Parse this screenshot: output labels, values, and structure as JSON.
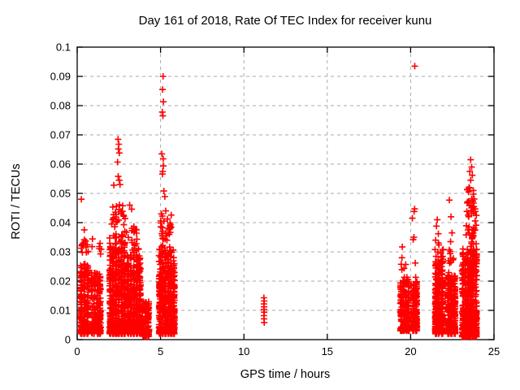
{
  "chart": {
    "title": "Day 161 of 2018, Rate Of TEC Index for receiver kunu",
    "xlabel": "GPS time / hours",
    "ylabel": "ROTI / TECUs",
    "colors": {
      "marker": "#ff0000",
      "frame": "#000000",
      "grid": "#aaaaaa",
      "background": "#ffffff",
      "text": "#000000"
    },
    "marker": {
      "shape": "plus",
      "size": 8,
      "stroke_width": 1.6
    }
  },
  "chart_data": {
    "type": "scatter",
    "title": "Day 161 of 2018, Rate Of TEC Index for receiver kunu",
    "xlabel": "GPS time / hours",
    "ylabel": "ROTI / TECUs",
    "xlim": [
      0,
      25
    ],
    "ylim": [
      0,
      0.1
    ],
    "xticks": [
      0,
      5,
      10,
      15,
      20,
      25
    ],
    "xtick_labels": [
      "0",
      "5",
      "10",
      "15",
      "20",
      "25"
    ],
    "ytick_values": [
      0,
      0.01,
      0.02,
      0.03,
      0.04,
      0.05,
      0.06,
      0.07,
      0.08,
      0.09,
      0.1
    ],
    "ytick_labels": [
      "0",
      "0.01",
      "0.02",
      "0.03",
      "0.04",
      "0.05",
      "0.06",
      "0.07",
      "0.08",
      "0.09",
      "0.1"
    ],
    "grid": true,
    "legend": null,
    "series_name": "ROTI",
    "dense_clusters": [
      {
        "x": [
          0.15,
          0.72
        ],
        "y": [
          0.002,
          0.026
        ],
        "n": 240,
        "p": 1.7
      },
      {
        "x": [
          0.8,
          1.45
        ],
        "y": [
          0.002,
          0.023
        ],
        "n": 210,
        "p": 1.7
      },
      {
        "x": [
          1.9,
          2.92
        ],
        "y": [
          0.002,
          0.033
        ],
        "n": 520,
        "p": 1.8
      },
      {
        "x": [
          2.95,
          3.85
        ],
        "y": [
          0.002,
          0.029
        ],
        "n": 440,
        "p": 1.8
      },
      {
        "x": [
          3.87,
          4.35
        ],
        "y": [
          0.001,
          0.013
        ],
        "n": 130,
        "p": 1.5
      },
      {
        "x": [
          4.87,
          5.88
        ],
        "y": [
          0.002,
          0.031
        ],
        "n": 560,
        "p": 1.8
      },
      {
        "x": [
          19.35,
          19.95
        ],
        "y": [
          0.003,
          0.021
        ],
        "n": 190,
        "p": 1.6
      },
      {
        "x": [
          20.08,
          20.42
        ],
        "y": [
          0.003,
          0.02
        ],
        "n": 150,
        "p": 1.6
      },
      {
        "x": [
          21.42,
          21.98
        ],
        "y": [
          0.002,
          0.027
        ],
        "n": 360,
        "p": 1.8
      },
      {
        "x": [
          22.18,
          22.72
        ],
        "y": [
          0.002,
          0.022
        ],
        "n": 300,
        "p": 1.8
      },
      {
        "x": [
          23.05,
          24.0
        ],
        "y": [
          0.001,
          0.031
        ],
        "n": 620,
        "p": 1.8
      }
    ],
    "sparse_bands": [
      {
        "x": [
          0.2,
          0.95
        ],
        "y": [
          0.028,
          0.039
        ],
        "n": 14
      },
      {
        "x": [
          1.3,
          1.45
        ],
        "y": [
          0.027,
          0.033
        ],
        "n": 4
      },
      {
        "x": [
          1.95,
          2.9
        ],
        "y": [
          0.033,
          0.047
        ],
        "n": 38
      },
      {
        "x": [
          2.95,
          3.75
        ],
        "y": [
          0.029,
          0.04
        ],
        "n": 20
      },
      {
        "x": [
          4.95,
          5.65
        ],
        "y": [
          0.031,
          0.043
        ],
        "n": 32
      },
      {
        "x": [
          19.4,
          19.9
        ],
        "y": [
          0.021,
          0.026
        ],
        "n": 6
      },
      {
        "x": [
          21.45,
          21.95
        ],
        "y": [
          0.027,
          0.034
        ],
        "n": 12
      },
      {
        "x": [
          22.25,
          22.65
        ],
        "y": [
          0.022,
          0.031
        ],
        "n": 10
      },
      {
        "x": [
          23.3,
          23.95
        ],
        "y": [
          0.031,
          0.043
        ],
        "n": 26
      },
      {
        "x": [
          23.35,
          23.9
        ],
        "y": [
          0.043,
          0.052
        ],
        "n": 24
      }
    ],
    "outlier_points": [
      [
        0.25,
        0.048
      ],
      [
        1.37,
        0.0329
      ],
      [
        2.45,
        0.0685
      ],
      [
        2.5,
        0.0668
      ],
      [
        2.47,
        0.0652
      ],
      [
        2.53,
        0.0638
      ],
      [
        2.42,
        0.0607
      ],
      [
        2.46,
        0.0558
      ],
      [
        2.52,
        0.0545
      ],
      [
        2.57,
        0.053
      ],
      [
        2.2,
        0.0528
      ],
      [
        3.15,
        0.046
      ],
      [
        3.27,
        0.0446
      ],
      [
        3.4,
        0.0387
      ],
      [
        3.56,
        0.0375
      ],
      [
        5.15,
        0.09
      ],
      [
        5.12,
        0.0855
      ],
      [
        5.17,
        0.0813
      ],
      [
        5.1,
        0.0778
      ],
      [
        5.14,
        0.0765
      ],
      [
        5.08,
        0.0635
      ],
      [
        5.16,
        0.0618
      ],
      [
        5.17,
        0.0594
      ],
      [
        5.13,
        0.0575
      ],
      [
        5.11,
        0.0566
      ],
      [
        5.2,
        0.0508
      ],
      [
        5.26,
        0.0489
      ],
      [
        5.31,
        0.044
      ],
      [
        11.2,
        0.0143
      ],
      [
        11.22,
        0.0132
      ],
      [
        11.2,
        0.0122
      ],
      [
        11.21,
        0.0112
      ],
      [
        11.2,
        0.0103
      ],
      [
        11.22,
        0.0094
      ],
      [
        11.2,
        0.0082
      ],
      [
        11.21,
        0.0071
      ],
      [
        11.22,
        0.0058
      ],
      [
        19.5,
        0.0317
      ],
      [
        19.48,
        0.028
      ],
      [
        20.25,
        0.0935
      ],
      [
        20.24,
        0.0447
      ],
      [
        20.21,
        0.0438
      ],
      [
        20.1,
        0.0415
      ],
      [
        20.2,
        0.035
      ],
      [
        20.15,
        0.0342
      ],
      [
        20.28,
        0.0262
      ],
      [
        20.3,
        0.0213
      ],
      [
        21.6,
        0.041
      ],
      [
        21.55,
        0.0388
      ],
      [
        21.66,
        0.0362
      ],
      [
        21.5,
        0.034
      ],
      [
        22.32,
        0.0477
      ],
      [
        22.42,
        0.042
      ],
      [
        22.48,
        0.0365
      ],
      [
        22.4,
        0.0335
      ],
      [
        23.6,
        0.0615
      ],
      [
        23.66,
        0.059
      ],
      [
        23.55,
        0.0575
      ],
      [
        23.7,
        0.0562
      ],
      [
        23.6,
        0.0545
      ],
      [
        23.5,
        0.052
      ],
      [
        23.76,
        0.051
      ]
    ],
    "generator": {
      "seed": 1234567,
      "column_spacing_hours": 0.17,
      "column_jitter_hours": 0.045
    }
  }
}
